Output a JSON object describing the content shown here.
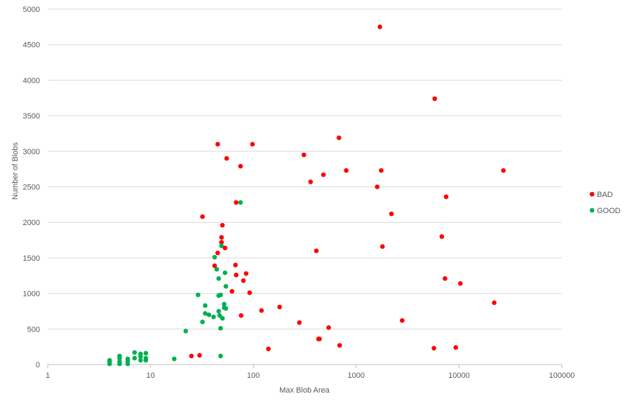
{
  "chart_data": {
    "type": "scatter",
    "title": "",
    "xlabel": "Max Blob Area",
    "ylabel": "Number of Blobs",
    "x_scale": "log",
    "xlim": [
      1,
      100000
    ],
    "ylim": [
      0,
      5000
    ],
    "x_ticks": [
      1,
      10,
      100,
      1000,
      10000,
      100000
    ],
    "y_ticks": [
      0,
      500,
      1000,
      1500,
      2000,
      2500,
      3000,
      3500,
      4000,
      4500,
      5000
    ],
    "grid": "horizontal",
    "legend": "right",
    "series": [
      {
        "name": "BAD",
        "color": "#ff0000",
        "points": [
          [
            1700,
            4750
          ],
          [
            5800,
            3740
          ],
          [
            45,
            3100
          ],
          [
            98,
            3100
          ],
          [
            680,
            3190
          ],
          [
            310,
            2950
          ],
          [
            55,
            2900
          ],
          [
            75,
            2790
          ],
          [
            480,
            2670
          ],
          [
            800,
            2730
          ],
          [
            1750,
            2730
          ],
          [
            27000,
            2730
          ],
          [
            360,
            2570
          ],
          [
            1600,
            2500
          ],
          [
            7500,
            2360
          ],
          [
            68,
            2280
          ],
          [
            2200,
            2120
          ],
          [
            32,
            2080
          ],
          [
            50,
            1960
          ],
          [
            49,
            1790
          ],
          [
            49,
            1720
          ],
          [
            53,
            1640
          ],
          [
            45,
            1570
          ],
          [
            410,
            1600
          ],
          [
            1800,
            1660
          ],
          [
            6800,
            1800
          ],
          [
            42,
            1390
          ],
          [
            67,
            1400
          ],
          [
            68,
            1260
          ],
          [
            85,
            1280
          ],
          [
            80,
            1180
          ],
          [
            7300,
            1210
          ],
          [
            10300,
            1140
          ],
          [
            62,
            1030
          ],
          [
            92,
            1010
          ],
          [
            120,
            760
          ],
          [
            180,
            810
          ],
          [
            22000,
            870
          ],
          [
            76,
            690
          ],
          [
            280,
            590
          ],
          [
            2800,
            620
          ],
          [
            540,
            520
          ],
          [
            430,
            360
          ],
          [
            440,
            360
          ],
          [
            690,
            270
          ],
          [
            140,
            220
          ],
          [
            5700,
            230
          ],
          [
            9300,
            240
          ],
          [
            25,
            120
          ],
          [
            30,
            130
          ]
        ]
      },
      {
        "name": "GOOD",
        "color": "#00b050",
        "points": [
          [
            75,
            2280
          ],
          [
            49,
            1670
          ],
          [
            42,
            1510
          ],
          [
            44,
            1340
          ],
          [
            53,
            1290
          ],
          [
            46,
            1210
          ],
          [
            54,
            1100
          ],
          [
            29,
            980
          ],
          [
            46,
            970
          ],
          [
            48,
            980
          ],
          [
            34,
            830
          ],
          [
            52,
            850
          ],
          [
            52,
            800
          ],
          [
            54,
            790
          ],
          [
            34,
            720
          ],
          [
            37,
            700
          ],
          [
            46,
            750
          ],
          [
            41,
            670
          ],
          [
            47,
            690
          ],
          [
            50,
            650
          ],
          [
            32,
            600
          ],
          [
            48,
            510
          ],
          [
            22,
            470
          ],
          [
            48,
            120
          ],
          [
            17,
            80
          ],
          [
            4,
            10
          ],
          [
            4,
            40
          ],
          [
            4,
            60
          ],
          [
            5,
            10
          ],
          [
            5,
            40
          ],
          [
            5,
            90
          ],
          [
            5,
            120
          ],
          [
            6,
            10
          ],
          [
            6,
            50
          ],
          [
            6,
            80
          ],
          [
            7,
            90
          ],
          [
            7,
            170
          ],
          [
            8,
            60
          ],
          [
            8,
            110
          ],
          [
            8,
            150
          ],
          [
            9,
            60
          ],
          [
            9,
            90
          ],
          [
            9,
            160
          ]
        ]
      }
    ]
  }
}
